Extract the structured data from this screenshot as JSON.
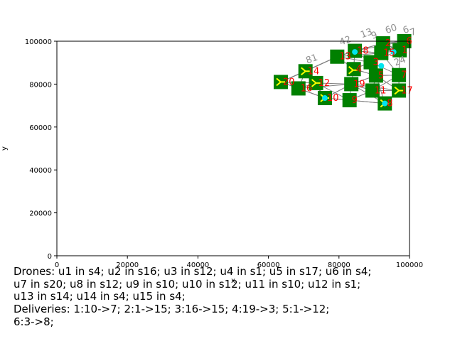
{
  "chart_data": {
    "type": "scatter",
    "xlabel": "x",
    "ylabel": "y",
    "xlim": [
      0,
      100000
    ],
    "ylim": [
      0,
      100000
    ],
    "xticks": [
      0,
      20000,
      40000,
      60000,
      80000,
      100000
    ],
    "yticks": [
      0,
      20000,
      40000,
      60000,
      80000,
      100000
    ],
    "grid": false,
    "colors": {
      "station": "#008000",
      "edge": "#808080",
      "drone": "#ffff00",
      "target": "#00e5ee",
      "label": "#ff0000",
      "faint_label": "#909090"
    },
    "stations": [
      {
        "label": "1",
        "x": 97200,
        "y": 95800
      },
      {
        "label": "2",
        "x": 92500,
        "y": 99000
      },
      {
        "label": "3",
        "x": 89000,
        "y": 90200
      },
      {
        "label": "4",
        "x": 84200,
        "y": 87000
      },
      {
        "label": "5",
        "x": 90500,
        "y": 84000
      },
      {
        "label": "6",
        "x": 98500,
        "y": 100000
      },
      {
        "label": "7",
        "x": 97000,
        "y": 84200
      },
      {
        "label": "8",
        "x": 93000,
        "y": 71000
      },
      {
        "label": "9",
        "x": 83000,
        "y": 72500
      },
      {
        "label": "10",
        "x": 76000,
        "y": 73500
      },
      {
        "label": "11",
        "x": 89500,
        "y": 77000
      },
      {
        "label": "12",
        "x": 73500,
        "y": 80500
      },
      {
        "label": "13",
        "x": 79500,
        "y": 92800
      },
      {
        "label": "14",
        "x": 70500,
        "y": 86000
      },
      {
        "label": "15",
        "x": 92000,
        "y": 94500
      },
      {
        "label": "16",
        "x": 68500,
        "y": 78000
      },
      {
        "label": "17",
        "x": 97000,
        "y": 77000
      },
      {
        "label": "18",
        "x": 84500,
        "y": 95500
      },
      {
        "label": "19",
        "x": 83500,
        "y": 80000
      },
      {
        "label": "20",
        "x": 63500,
        "y": 81000
      }
    ],
    "faint_labels": [
      {
        "label": "6",
        "x": 98500,
        "y": 103500
      },
      {
        "label": "7",
        "x": 100500,
        "y": 102500
      },
      {
        "label": "13",
        "x": 86500,
        "y": 101500
      },
      {
        "label": "42",
        "x": 80500,
        "y": 98000
      },
      {
        "label": "81",
        "x": 71000,
        "y": 89500
      },
      {
        "label": "24",
        "x": 96000,
        "y": 88500
      },
      {
        "label": "9",
        "x": 89500,
        "y": 101000
      },
      {
        "label": "60",
        "x": 93500,
        "y": 103500
      }
    ],
    "drones": [
      {
        "x": 97000,
        "y": 77000
      },
      {
        "x": 84000,
        "y": 86500
      },
      {
        "x": 70500,
        "y": 86000
      },
      {
        "x": 63500,
        "y": 81000
      },
      {
        "x": 73500,
        "y": 80500
      },
      {
        "x": 76000,
        "y": 73500
      },
      {
        "x": 93000,
        "y": 71000
      }
    ],
    "targets": [
      {
        "x": 84500,
        "y": 95000
      },
      {
        "x": 95500,
        "y": 95000
      },
      {
        "x": 92000,
        "y": 88500
      },
      {
        "x": 76000,
        "y": 73500
      },
      {
        "x": 93000,
        "y": 71000
      }
    ]
  },
  "status": {
    "line1": "Drones: u1 in s4; u2 in s16; u3 in s12; u4 in s1; u5 in s17; u6 in s4;",
    "line2": "u7 in s20; u8 in s12; u9 in s10; u10 in s12; u11 in s10; u12 in s1;",
    "line3": "u13 in s14; u14 in s4; u15 in s4;",
    "line4": "Deliveries: 1:10->7; 2:1->15; 3:16->15; 4:19->3; 5:1->12;",
    "line5": "6:3->8;"
  }
}
